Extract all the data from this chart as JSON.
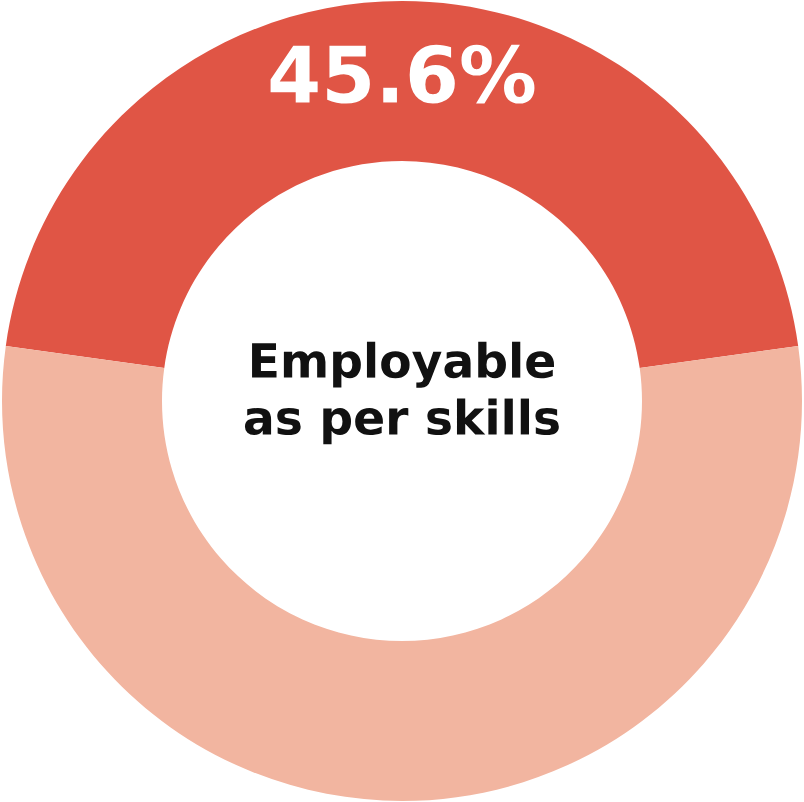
{
  "chart_data": {
    "type": "donut",
    "categories": [
      null,
      null
    ],
    "values": [
      45.6,
      54.4
    ],
    "colors": [
      "#e05545",
      "#f2b5a0"
    ],
    "value_labels": [
      "45.6%",
      null
    ],
    "annotations": [
      "Employable\nas per skills"
    ]
  }
}
